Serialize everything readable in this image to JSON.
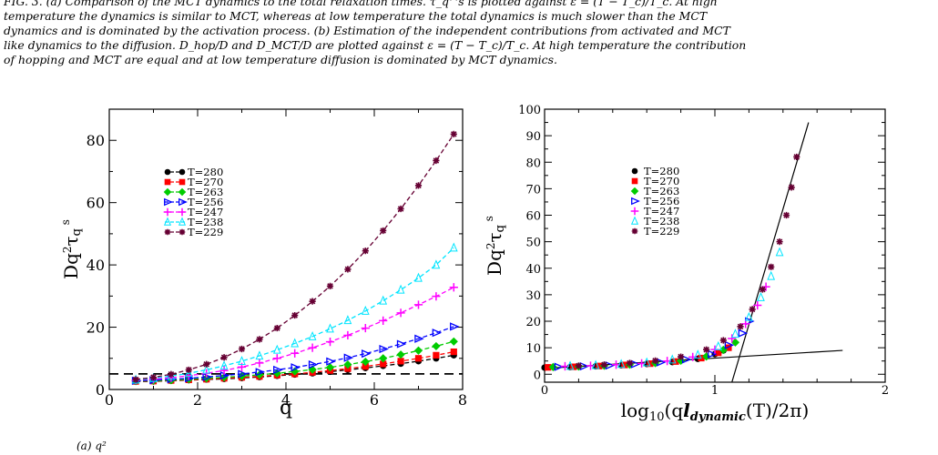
{
  "caption": {
    "lines": [
      "FIG. 3.  (a) Comparison of the MCT dynamics to the total relaxation times.  τ_q^s  is plotted against  ε = (T − T_c)/T_c.  At high",
      "temperature the dynamics is similar to MCT, whereas at low temperature the total dynamics is much slower than the MCT",
      "dynamics and is dominated by the activation process. (b) Estimation of the independent contributions from activated and MCT",
      "like dynamics to the diffusion. D_hop/D and D_MCT/D are plotted against ε = (T − T_c)/T_c. At high temperature the contribution",
      "of hopping and MCT are equal and at low temperature diffusion is dominated by MCT dynamics."
    ]
  },
  "bottom_label": "(a) q²",
  "legend_labels": [
    "T=280",
    "T=270",
    "T=263",
    "T=256",
    "T=247",
    "T=238",
    "T=229"
  ],
  "colors": {
    "T=280": "#000000",
    "T=270": "#ff0000",
    "T=263": "#00cc00",
    "T=256": "#0000ff",
    "T=247": "#ff00ff",
    "T=238": "#00e5ff",
    "T=229": "#660033"
  },
  "chart_data": [
    {
      "type": "line",
      "panel": "left",
      "xlabel": "q",
      "ylabel": "Dq²τ_q^s",
      "xlim": [
        0,
        8
      ],
      "ylim": [
        0,
        90
      ],
      "xticks": [
        0,
        2,
        4,
        6,
        8
      ],
      "yticks": [
        0,
        20,
        40,
        60,
        80
      ],
      "reference_line": {
        "y": 5,
        "style": "dashed"
      },
      "x": [
        0.6,
        1.0,
        1.4,
        1.8,
        2.2,
        2.6,
        3.0,
        3.4,
        3.8,
        4.2,
        4.6,
        5.0,
        5.4,
        5.8,
        6.2,
        6.6,
        7.0,
        7.4,
        7.8
      ],
      "legend_position": "upper-left",
      "series": [
        {
          "name": "T=280",
          "marker": "circle",
          "values": [
            2.5,
            2.6,
            2.8,
            3.0,
            3.2,
            3.4,
            3.7,
            4.0,
            4.4,
            4.8,
            5.2,
            5.7,
            6.3,
            6.9,
            7.6,
            8.3,
            9.1,
            10.0,
            11.0
          ]
        },
        {
          "name": "T=270",
          "marker": "square",
          "values": [
            2.6,
            2.7,
            2.9,
            3.1,
            3.3,
            3.6,
            3.9,
            4.2,
            4.6,
            5.0,
            5.5,
            6.1,
            6.7,
            7.4,
            8.2,
            9.1,
            10.0,
            11.0,
            12.1
          ]
        },
        {
          "name": "T=263",
          "marker": "diamond",
          "values": [
            2.7,
            2.8,
            3.0,
            3.3,
            3.6,
            3.9,
            4.3,
            4.7,
            5.2,
            5.8,
            6.4,
            7.1,
            8.0,
            8.9,
            10.0,
            11.2,
            12.5,
            13.9,
            15.4
          ]
        },
        {
          "name": "T=256",
          "marker": "triangle-right",
          "values": [
            2.8,
            3.0,
            3.3,
            3.6,
            4.0,
            4.5,
            5.0,
            5.6,
            6.3,
            7.1,
            8.0,
            9.0,
            10.2,
            11.5,
            13.0,
            14.6,
            16.3,
            18.2,
            20.2
          ]
        },
        {
          "name": "T=247",
          "marker": "plus",
          "values": [
            3.0,
            3.3,
            3.8,
            4.4,
            5.2,
            6.1,
            7.2,
            8.5,
            10.0,
            11.6,
            13.4,
            15.3,
            17.4,
            19.7,
            22.1,
            24.6,
            27.2,
            29.9,
            32.8
          ]
        },
        {
          "name": "T=238",
          "marker": "triangle-up",
          "values": [
            3.1,
            3.6,
            4.3,
            5.2,
            6.3,
            7.6,
            9.1,
            10.8,
            12.7,
            14.8,
            17.0,
            19.5,
            22.2,
            25.2,
            28.5,
            32.0,
            35.8,
            40.0,
            45.5
          ]
        },
        {
          "name": "T=229",
          "marker": "star",
          "values": [
            3.2,
            3.9,
            4.9,
            6.3,
            8.1,
            10.3,
            13.0,
            16.1,
            19.7,
            23.8,
            28.3,
            33.2,
            38.6,
            44.5,
            51.0,
            58.0,
            65.5,
            73.5,
            82.0
          ]
        }
      ]
    },
    {
      "type": "scatter",
      "panel": "right",
      "xlabel": "log10(q l_dynamic(T)/2π)",
      "ylabel": "Dq²τ_q^s",
      "xlim": [
        0,
        2
      ],
      "ylim": [
        -3,
        100
      ],
      "xticks": [
        0,
        1,
        2
      ],
      "yticks": [
        0,
        10,
        20,
        30,
        40,
        50,
        60,
        70,
        80,
        90,
        100
      ],
      "legend_position": "upper-left",
      "fit_lines": [
        {
          "label": "low",
          "points": [
            [
              0.0,
              2.2
            ],
            [
              1.75,
              9.0
            ]
          ]
        },
        {
          "label": "high",
          "points": [
            [
              1.1,
              -3.0
            ],
            [
              1.55,
              95.0
            ]
          ]
        }
      ],
      "series": [
        {
          "name": "T=280",
          "marker": "circle",
          "x": [
            0.0,
            0.15,
            0.3,
            0.45,
            0.6,
            0.75,
            0.9,
            1.0,
            1.05
          ],
          "y": [
            2.5,
            2.7,
            3.0,
            3.4,
            3.9,
            4.6,
            5.8,
            7.6,
            9.0
          ]
        },
        {
          "name": "T=270",
          "marker": "square",
          "x": [
            0.02,
            0.17,
            0.32,
            0.47,
            0.62,
            0.77,
            0.92,
            1.02,
            1.08
          ],
          "y": [
            2.6,
            2.8,
            3.1,
            3.5,
            4.0,
            4.8,
            6.1,
            8.1,
            10.0
          ]
        },
        {
          "name": "T=263",
          "marker": "diamond",
          "x": [
            0.05,
            0.2,
            0.35,
            0.5,
            0.65,
            0.8,
            0.95,
            1.05,
            1.12
          ],
          "y": [
            2.7,
            2.9,
            3.2,
            3.6,
            4.2,
            5.1,
            6.7,
            9.2,
            12.0
          ]
        },
        {
          "name": "T=256",
          "marker": "triangle-right",
          "x": [
            0.08,
            0.23,
            0.38,
            0.53,
            0.68,
            0.83,
            0.98,
            1.08,
            1.16,
            1.2
          ],
          "y": [
            2.8,
            3.0,
            3.3,
            3.8,
            4.5,
            5.6,
            7.6,
            11.0,
            15.5,
            20.0
          ]
        },
        {
          "name": "T=247",
          "marker": "plus",
          "x": [
            0.12,
            0.27,
            0.42,
            0.57,
            0.72,
            0.87,
            1.0,
            1.1,
            1.18,
            1.25,
            1.3
          ],
          "y": [
            3.0,
            3.2,
            3.6,
            4.1,
            5.0,
            6.5,
            9.3,
            13.5,
            19.0,
            26.0,
            33.0
          ]
        },
        {
          "name": "T=238",
          "marker": "triangle-up",
          "x": [
            0.15,
            0.3,
            0.45,
            0.6,
            0.75,
            0.9,
            1.02,
            1.12,
            1.2,
            1.27,
            1.33,
            1.38
          ],
          "y": [
            3.1,
            3.4,
            3.8,
            4.4,
            5.5,
            7.3,
            10.5,
            15.2,
            21.5,
            29.0,
            37.0,
            46.0
          ]
        },
        {
          "name": "T=229",
          "marker": "star",
          "x": [
            0.2,
            0.35,
            0.5,
            0.65,
            0.8,
            0.95,
            1.05,
            1.15,
            1.22,
            1.28,
            1.33,
            1.38,
            1.42,
            1.45,
            1.48
          ],
          "y": [
            3.2,
            3.6,
            4.2,
            5.1,
            6.6,
            9.3,
            12.8,
            18.0,
            24.5,
            32.0,
            40.5,
            50.0,
            60.0,
            70.5,
            82.0
          ]
        }
      ]
    }
  ]
}
